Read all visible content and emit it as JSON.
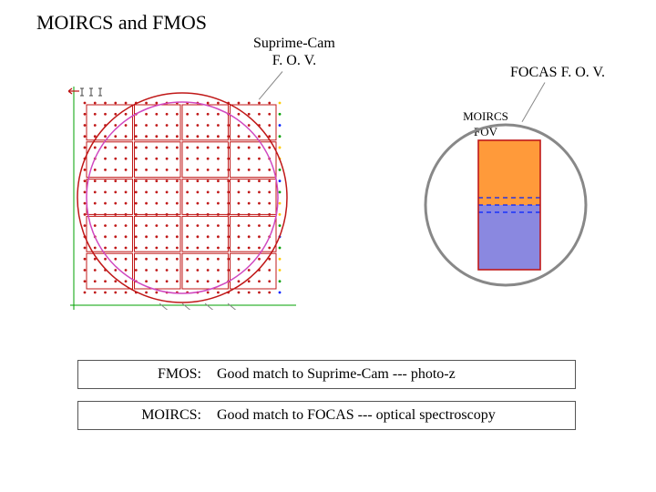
{
  "title": "MOIRCS and FMOS",
  "labels": {
    "suprime": "Suprime-Cam\nF. O. V.",
    "focas": "FOCAS F. O. V.",
    "moircs_fov_l1": "MOIRCS",
    "moircs_fov_l2": "FOV"
  },
  "summary": {
    "fmos_label": "FMOS:",
    "fmos_text": "Good match  to Suprime-Cam --- photo-z",
    "moircs_label": "MOIRCS:",
    "moircs_text": "Good match to FOCAS --- optical spectroscopy"
  },
  "left_fov": {
    "outer_color": "#c01818",
    "inner_color": "#d048c0",
    "tile_border": "#c01818",
    "tile_rows": 5,
    "tile_cols": 4,
    "dot_cols": 20,
    "dot_rows": 18,
    "dot_colors_last": [
      "#ffcc00",
      "#00a000",
      "#0020ff",
      "#00a000",
      "#ffcc00"
    ],
    "dot_color_default": "#c01818",
    "bracket_color": "#00a000",
    "axis_color": "#00a000",
    "arrow_color": "#c01818"
  },
  "right_fov": {
    "circle_color": "#888888",
    "circle_border_w": 3,
    "rect_border": "#c01818",
    "top_fill": "#ff9a3a",
    "bottom_fill": "#8a88e0",
    "dashed_color": "#0020ff"
  },
  "summary_box": {
    "border_color": "#555555",
    "bg": "#ffffff"
  }
}
